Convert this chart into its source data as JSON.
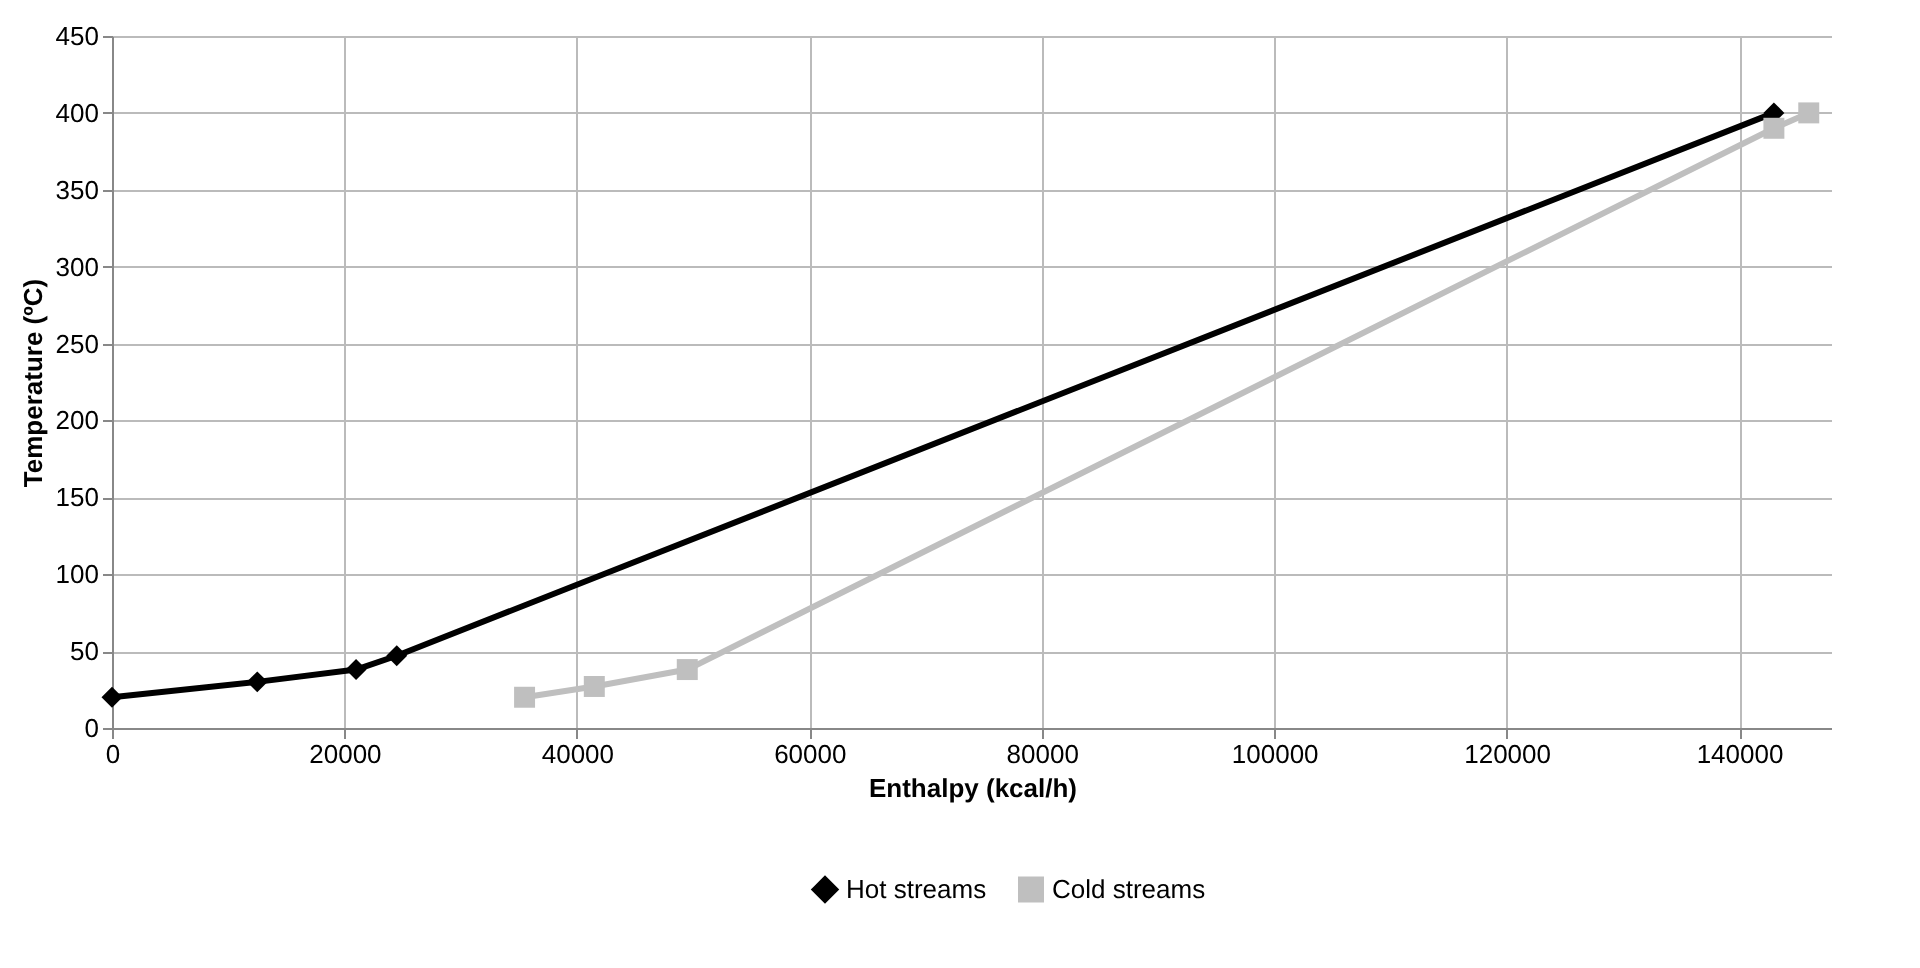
{
  "chart_data": {
    "type": "line",
    "xlabel": "Enthalpy (kcal/h)",
    "ylabel": "Temperature (ºC)",
    "series": [
      {
        "name": "Hot streams",
        "color": "#000000",
        "marker": "diamond",
        "x": [
          0,
          12500,
          21000,
          24500,
          143000
        ],
        "values": [
          20,
          30,
          38,
          47,
          400
        ]
      },
      {
        "name": "Cold streams",
        "color": "#bfbfbf",
        "marker": "square",
        "x": [
          35500,
          41500,
          49500,
          143000,
          146000
        ],
        "values": [
          20,
          27,
          38,
          390,
          400
        ]
      }
    ],
    "xlim": [
      0,
      148000
    ],
    "xticks": [
      0,
      20000,
      40000,
      60000,
      80000,
      100000,
      120000,
      140000
    ],
    "ylim": [
      0,
      450
    ],
    "yticks": [
      0,
      50,
      100,
      150,
      200,
      250,
      300,
      350,
      400,
      450
    ],
    "grid": true,
    "legend": "bottom",
    "line_style": "solid"
  }
}
